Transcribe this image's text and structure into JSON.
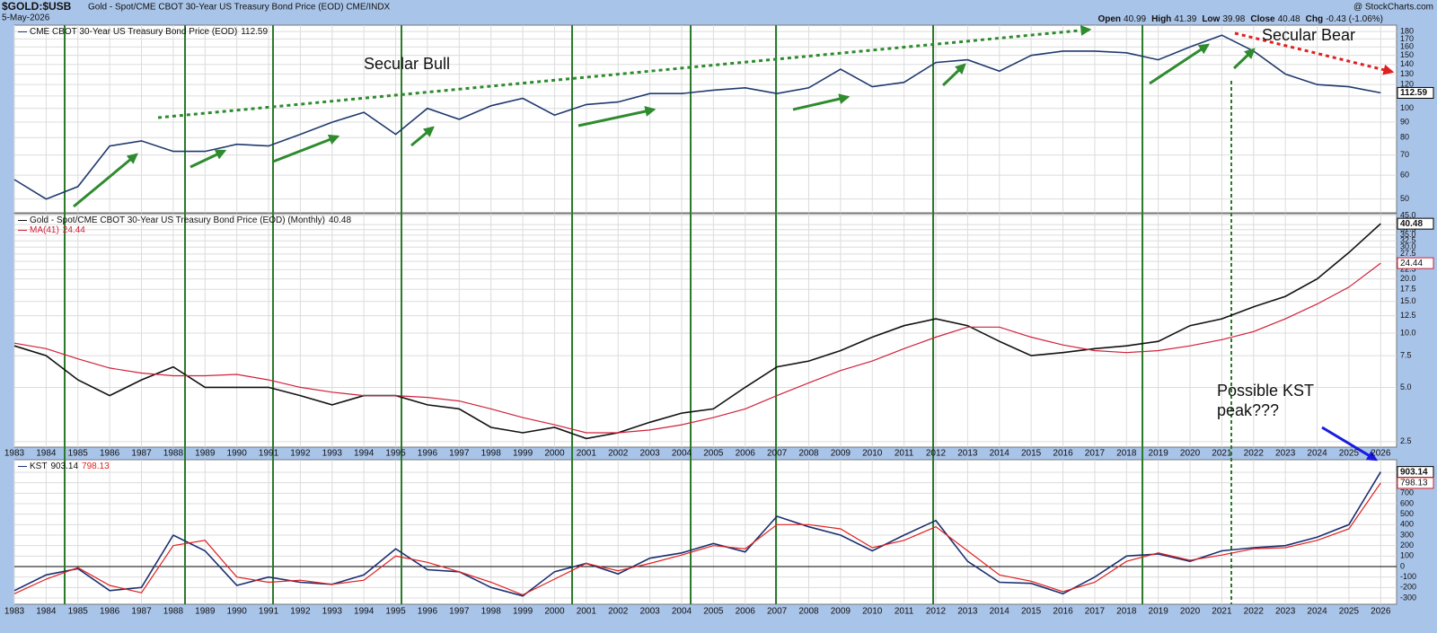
{
  "header": {
    "symbol": "$GOLD:$USB",
    "description": "Gold - Spot/CME CBOT 30-Year US Treasury Bond Price (EOD) CME/INDX",
    "date": "5-May-2026",
    "credit": "@ StockCharts.com",
    "quote": [
      {
        "label": "Open",
        "value": 40.99
      },
      {
        "label": "High",
        "value": 41.39
      },
      {
        "label": "Low",
        "value": 39.98
      },
      {
        "label": "Close",
        "value": 40.48
      },
      {
        "label": "Chg",
        "value": -0.43,
        "value_label": "-0.43 (-1.06%)"
      }
    ]
  },
  "chart_data": [
    {
      "type": "line",
      "log_scale": true,
      "grid": true,
      "legend": "top-left",
      "xlim": [
        1983,
        2026.5
      ],
      "ylim": [
        45,
        189
      ],
      "yticks": [
        50,
        60,
        70,
        80,
        90,
        100,
        110,
        120,
        130,
        140,
        150,
        160,
        170,
        180
      ],
      "x": [
        1983,
        1984,
        1985,
        1986,
        1987,
        1988,
        1989,
        1990,
        1991,
        1992,
        1993,
        1994,
        1995,
        1996,
        1997,
        1998,
        1999,
        2000,
        2001,
        2002,
        2003,
        2004,
        2005,
        2006,
        2007,
        2008,
        2009,
        2010,
        2011,
        2012,
        2013,
        2014,
        2015,
        2016,
        2017,
        2018,
        2019,
        2020,
        2021,
        2022,
        2023,
        2024,
        2025,
        2026
      ],
      "series": [
        {
          "name": "CME CBOT 30-Year US Treasury Bond Price (EOD)",
          "color": "#1f3a6e",
          "values": [
            58,
            50,
            55,
            75,
            78,
            72,
            72,
            76,
            75,
            82,
            90,
            97,
            82,
            100,
            92,
            102,
            108,
            95,
            103,
            105,
            112,
            112,
            115,
            117,
            112,
            117,
            135,
            118,
            122,
            142,
            145,
            133,
            150,
            155,
            155,
            153,
            145,
            160,
            175,
            155,
            130,
            120,
            118,
            112.59
          ]
        }
      ],
      "annotations": [
        {
          "text": "Secular Bull",
          "color": "#2e8b2e"
        },
        {
          "text": "Secular Bear",
          "color": "#e02020"
        }
      ]
    },
    {
      "type": "line",
      "log_scale": true,
      "grid": true,
      "legend": "top-left",
      "xlim": [
        1983,
        2026.5
      ],
      "ylim": [
        2.33,
        46
      ],
      "yticks": [
        {
          "value": 2.5,
          "label": "2.5"
        },
        {
          "value": 5,
          "label": "5.0"
        },
        {
          "value": 7.5,
          "label": "7.5"
        },
        {
          "value": 10,
          "label": "10.0"
        },
        {
          "value": 12.5,
          "label": "12.5"
        },
        {
          "value": 15,
          "label": "15.0"
        },
        {
          "value": 17.5,
          "label": "17.5"
        },
        {
          "value": 20,
          "label": "20.0"
        },
        {
          "value": 22.5,
          "label": "22.5"
        },
        {
          "value": 25,
          "label": "25.0"
        },
        {
          "value": 27.5,
          "label": "27.5"
        },
        {
          "value": 30,
          "label": "30.0"
        },
        {
          "value": 32.5,
          "label": "32.5"
        },
        {
          "value": 35,
          "label": "35.0"
        },
        {
          "value": 37.5,
          "label": "37.5"
        },
        {
          "value": 40,
          "label": "40.0"
        },
        {
          "value": 45,
          "label": "45.0"
        }
      ],
      "x": [
        1983,
        1984,
        1985,
        1986,
        1987,
        1988,
        1989,
        1990,
        1991,
        1992,
        1993,
        1994,
        1995,
        1996,
        1997,
        1998,
        1999,
        2000,
        2001,
        2002,
        2003,
        2004,
        2005,
        2006,
        2007,
        2008,
        2009,
        2010,
        2011,
        2012,
        2013,
        2014,
        2015,
        2016,
        2017,
        2018,
        2019,
        2020,
        2021,
        2022,
        2023,
        2024,
        2025,
        2026
      ],
      "series": [
        {
          "name": "Gold - Spot/CME CBOT 30-Year US Treasury Bond Price (EOD) (Monthly)",
          "color": "#111111",
          "values": [
            8.5,
            7.5,
            5.5,
            4.5,
            5.5,
            6.5,
            5.0,
            5.0,
            5.0,
            4.5,
            4.0,
            4.5,
            4.5,
            4.0,
            3.8,
            3.0,
            2.8,
            3.0,
            2.6,
            2.8,
            3.2,
            3.6,
            3.8,
            5.0,
            6.5,
            7.0,
            8.0,
            9.5,
            11.0,
            12.0,
            11.0,
            9.0,
            7.5,
            7.8,
            8.2,
            8.5,
            9.0,
            11.0,
            12.0,
            14.0,
            16.0,
            20.0,
            28.0,
            40.48
          ]
        },
        {
          "name": "MA(41)",
          "color": "#d0203a",
          "values": [
            8.8,
            8.2,
            7.2,
            6.4,
            6.0,
            5.8,
            5.8,
            5.9,
            5.5,
            5.0,
            4.7,
            4.5,
            4.5,
            4.4,
            4.2,
            3.8,
            3.4,
            3.1,
            2.8,
            2.8,
            2.9,
            3.1,
            3.4,
            3.8,
            4.5,
            5.3,
            6.2,
            7.0,
            8.2,
            9.5,
            10.8,
            10.8,
            9.5,
            8.6,
            8.0,
            7.8,
            8.0,
            8.5,
            9.2,
            10.2,
            12.0,
            14.5,
            18.0,
            24.44
          ]
        }
      ]
    },
    {
      "type": "line",
      "log_scale": false,
      "grid": true,
      "legend": "top-left",
      "xlim": [
        1983,
        2026.5
      ],
      "ylim": [
        -360,
        1020
      ],
      "yticks": [
        -300,
        -200,
        -100,
        0,
        100,
        200,
        300,
        400,
        500,
        600,
        700,
        800,
        900
      ],
      "x": [
        1983,
        1984,
        1985,
        1986,
        1987,
        1988,
        1989,
        1990,
        1991,
        1992,
        1993,
        1994,
        1995,
        1996,
        1997,
        1998,
        1999,
        2000,
        2001,
        2002,
        2003,
        2004,
        2005,
        2006,
        2007,
        2008,
        2009,
        2010,
        2011,
        2012,
        2013,
        2014,
        2015,
        2016,
        2017,
        2018,
        2019,
        2020,
        2021,
        2022,
        2023,
        2024,
        2025,
        2026
      ],
      "series": [
        {
          "name": "KST",
          "color": "#1a2f6e",
          "values": [
            -230,
            -80,
            -20,
            -230,
            -200,
            300,
            150,
            -180,
            -100,
            -150,
            -170,
            -80,
            170,
            -30,
            -50,
            -200,
            -280,
            -50,
            30,
            -70,
            80,
            130,
            220,
            140,
            480,
            380,
            300,
            150,
            300,
            440,
            50,
            -150,
            -160,
            -260,
            -100,
            100,
            120,
            50,
            150,
            180,
            200,
            280,
            400,
            903.14
          ]
        },
        {
          "color": "#e02020",
          "values": [
            -260,
            -120,
            -10,
            -180,
            -250,
            200,
            250,
            -100,
            -150,
            -130,
            -170,
            -130,
            100,
            40,
            -50,
            -150,
            -270,
            -120,
            30,
            -40,
            30,
            110,
            200,
            170,
            400,
            400,
            360,
            180,
            250,
            380,
            150,
            -80,
            -140,
            -240,
            -150,
            50,
            130,
            60,
            110,
            170,
            180,
            250,
            360,
            798.13
          ]
        }
      ],
      "annotations": [
        {
          "text": "Possible KST peak???",
          "color": "#1a1ae0"
        }
      ]
    }
  ]
}
